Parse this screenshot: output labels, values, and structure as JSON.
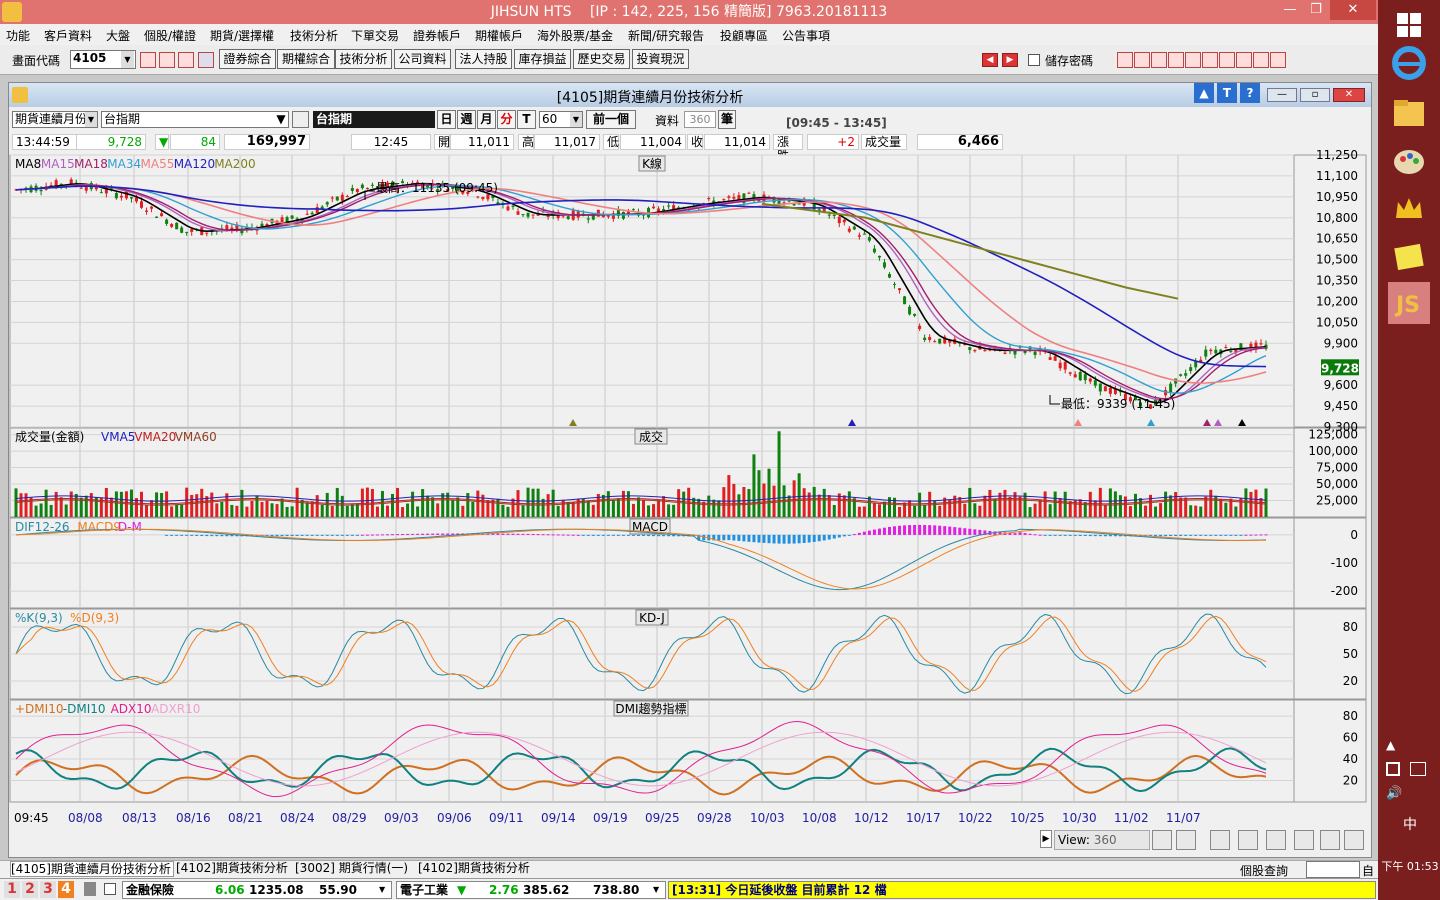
{
  "window": {
    "title": "JIHSUN HTS　 [IP : 142, 225, 156 精簡版] 7963.20181113"
  },
  "menu": [
    "功能",
    "客戶資料",
    "大盤",
    "個股/權證",
    "期貨/選擇權",
    "技術分析",
    "下單交易",
    "證券帳戶",
    "期權帳戶",
    "海外股票/基金",
    "新聞/研究報告",
    "投顧專區",
    "公告事項"
  ],
  "toolbar": {
    "code_label": "畫面代碼",
    "code_value": "4105",
    "buttons": [
      "證券綜合",
      "期權綜合",
      "技術分析",
      "公司資料",
      "法人持股",
      "庫存損益",
      "歷史交易",
      "投資現況"
    ],
    "save_password": "儲存密碼"
  },
  "child": {
    "title": "[4105]期貨連續月份技術分析",
    "product_type": "期貨連續月份",
    "product_name": "台指期",
    "product_display": "台指期",
    "periods": [
      "日",
      "週",
      "月",
      "分",
      "T"
    ],
    "minute_value": "60",
    "prev_button": "前一個",
    "data_label": "資料",
    "data_count": "360",
    "data_unit": "筆",
    "time_range": "[09:45 - 13:45]"
  },
  "quote": {
    "time": "13:44:59",
    "price": "9,728",
    "arrow": "▼",
    "change": "84",
    "volume_total": "169,997",
    "bar_time": "12:45",
    "open_label": "開",
    "open": "11,011",
    "high_label": "高",
    "high": "11,017",
    "low_label": "低",
    "low": "11,004",
    "close_label": "收",
    "close": "11,014",
    "chg_label": "漲跌",
    "chg": "+2",
    "vol_label": "成交量",
    "vol": "6,466"
  },
  "panels": {
    "kline": {
      "title": "K線",
      "ma_legend": [
        {
          "name": "MA8",
          "color": "#000000"
        },
        {
          "name": "MA15",
          "color": "#b060c0"
        },
        {
          "name": "MA18",
          "color": "#a0206a"
        },
        {
          "name": "MA34",
          "color": "#30a0d0"
        },
        {
          "name": "MA55",
          "color": "#f08080"
        },
        {
          "name": "MA120",
          "color": "#2020c0"
        },
        {
          "name": "MA200",
          "color": "#808020"
        }
      ],
      "yticks": [
        "11,250",
        "11,100",
        "10,950",
        "10,800",
        "10,650",
        "10,500",
        "10,350",
        "10,200",
        "10,050",
        "9,900",
        "9,728",
        "9,600",
        "9,450",
        "9,300"
      ],
      "high_note": "最高：11135 (09:45)",
      "low_note": "最低：9339 (11:45)",
      "last_price": "9,728"
    },
    "volume": {
      "title": "成交",
      "legend_main": "成交量(金額)",
      "legend": [
        {
          "name": "VMA5",
          "color": "#2020c0"
        },
        {
          "name": "VMA20",
          "color": "#c02020"
        },
        {
          "name": "VMA60",
          "color": "#904020"
        }
      ],
      "yticks": [
        "125,000",
        "100,000",
        "75,000",
        "50,000",
        "25,000"
      ]
    },
    "macd": {
      "title": "MACD",
      "legend": [
        {
          "name": "DIF12-26",
          "color": "#2a8aa0"
        },
        {
          "name": "MACD9",
          "color": "#f08020"
        },
        {
          "name": "D-M",
          "color": "#e020e0"
        }
      ],
      "yticks": [
        "0",
        "-100",
        "-200"
      ]
    },
    "kd": {
      "title": "KD-J",
      "legend": [
        {
          "name": "%K(9,3)",
          "color": "#2a8aa0"
        },
        {
          "name": "%D(9,3)",
          "color": "#f08020"
        }
      ],
      "yticks": [
        "80",
        "50",
        "20"
      ]
    },
    "dmi": {
      "title": "DMI趨勢指標",
      "legend": [
        {
          "name": "+DMI10",
          "color": "#d07020"
        },
        {
          "name": "-DMI10",
          "color": "#108080"
        },
        {
          "name": "ADX10",
          "color": "#e02090"
        },
        {
          "name": "ADXR10",
          "color": "#f0a0d0"
        }
      ],
      "yticks": [
        "80",
        "60",
        "40",
        "20"
      ]
    }
  },
  "xaxis": [
    "09:45",
    "08/08",
    "08/13",
    "08/16",
    "08/21",
    "08/24",
    "08/29",
    "09/03",
    "09/06",
    "09/11",
    "09/14",
    "09/19",
    "09/25",
    "09/28",
    "10/03",
    "10/08",
    "10/12",
    "10/17",
    "10/22",
    "10/25",
    "10/30",
    "11/02",
    "11/07"
  ],
  "view": {
    "label": "View:",
    "value": "360"
  },
  "tabs": [
    "[4105]期貨連續月份技術分析",
    "[4102]期貨技術分析",
    "[3002] 期貨行情(一)",
    "[4102]期貨技術分析"
  ],
  "status": {
    "page_nums": [
      "1",
      "2",
      "3",
      "4"
    ],
    "sector1": "金融保險",
    "sector1_chg": "6.06",
    "sector1_idx": "1235.08",
    "sector1_vol": "55.90",
    "sector2": "電子工業",
    "sector2_arrow": "▼",
    "sector2_chg": "2.76",
    "sector2_idx": "385.62",
    "sector2_vol": "738.80",
    "ticker": "[13:31] 今日延後收盤 目前累計 12 檔",
    "query_label": "個股查詢",
    "query_end": "自"
  },
  "taskbar": {
    "ime": "中",
    "clock": "下午 01:53"
  },
  "chart_data": [
    {
      "type": "line",
      "title": "K線",
      "x": [
        "09:45",
        "08/08",
        "08/13",
        "08/16",
        "08/21",
        "08/24",
        "08/29",
        "09/03",
        "09/06",
        "09/11",
        "09/14",
        "09/19",
        "09/25",
        "09/28",
        "10/03",
        "10/08",
        "10/12",
        "10/17",
        "10/22",
        "10/25",
        "10/30",
        "11/02",
        "11/07"
      ],
      "series": [
        {
          "name": "MA8",
          "values": [
            11000,
            11050,
            10950,
            10700,
            10720,
            10800,
            11000,
            11050,
            11000,
            10820,
            10820,
            10830,
            10900,
            10950,
            10900,
            10650,
            9950,
            9850,
            9850,
            9600,
            9450,
            9850,
            9880
          ]
        },
        {
          "name": "MA200",
          "values": [
            null,
            null,
            null,
            null,
            null,
            null,
            null,
            null,
            null,
            null,
            null,
            null,
            null,
            null,
            10900,
            10850,
            10800,
            10700,
            10600,
            10500,
            10400,
            10300,
            10220
          ]
        }
      ],
      "ylim": [
        9300,
        11250
      ],
      "yticks": [
        11250,
        11100,
        10950,
        10800,
        10650,
        10500,
        10350,
        10200,
        10050,
        9900,
        9600,
        9450,
        9300
      ],
      "annotations": [
        "最高：11135 (09:45)",
        "最低：9339 (11:45)"
      ]
    },
    {
      "type": "bar",
      "title": "成交",
      "ylim": [
        0,
        125000
      ],
      "yticks": [
        125000,
        100000,
        75000,
        50000,
        25000
      ]
    },
    {
      "type": "line",
      "title": "MACD",
      "ylim": [
        -250,
        50
      ],
      "yticks": [
        0,
        -100,
        -200
      ]
    },
    {
      "type": "line",
      "title": "KD-J",
      "ylim": [
        0,
        100
      ],
      "yticks": [
        80,
        50,
        20
      ]
    },
    {
      "type": "line",
      "title": "DMI趨勢指標",
      "ylim": [
        0,
        90
      ],
      "yticks": [
        80,
        60,
        40,
        20
      ]
    }
  ]
}
